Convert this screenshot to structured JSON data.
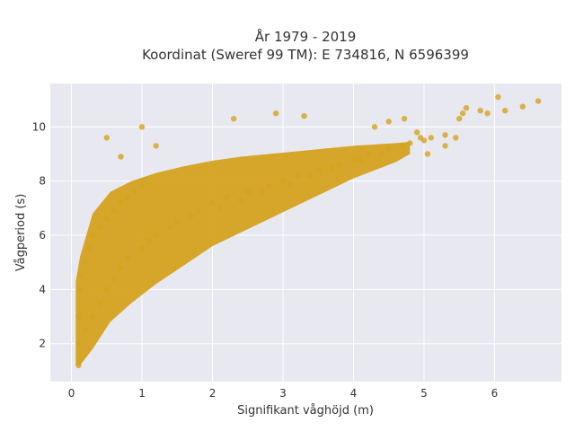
{
  "chart_data": {
    "type": "scatter",
    "title_line1": "År 1979 - 2019",
    "title_line2": "Koordinat (Sweref 99 TM): E 734816, N 6596399",
    "xlabel": "Signifikant våghöjd (m)",
    "ylabel": "Vågperiod (s)",
    "xlim": [
      -0.3,
      6.95
    ],
    "ylim": [
      0.6,
      11.6
    ],
    "xticks": [
      0,
      1,
      2,
      3,
      4,
      5,
      6
    ],
    "yticks": [
      2,
      4,
      6,
      8,
      10
    ],
    "xtick_labels": [
      "0",
      "1",
      "2",
      "3",
      "4",
      "5",
      "6"
    ],
    "ytick_labels": [
      "2",
      "4",
      "6",
      "8",
      "10"
    ],
    "grid": true,
    "legend": "none",
    "colors": {
      "marker": "#d4a21e",
      "plot_bg": "#e8e8f0",
      "grid": "#ffffff",
      "paper_bg": "#ffffff"
    },
    "series": [
      {
        "points_note_free": true,
        "x": [
          0.1,
          0.1,
          0.1,
          0.12,
          0.15,
          0.2,
          0.25,
          0.3,
          0.4,
          0.5,
          0.6,
          0.7,
          0.8,
          0.9,
          1.0,
          0.3,
          0.5,
          0.7,
          1.0,
          1.2,
          1.5,
          1.8,
          2.0,
          2.2,
          2.5,
          2.8,
          3.0,
          3.2,
          3.5,
          3.8,
          4.0,
          4.2,
          4.5,
          4.8,
          5.0,
          0.2,
          0.4,
          0.6,
          0.8,
          1.1,
          1.4,
          1.7,
          2.1,
          2.4,
          2.7,
          3.1,
          3.4,
          3.7,
          4.1,
          4.4,
          4.7,
          5.1,
          5.3,
          5.5,
          5.6,
          5.8,
          5.9,
          6.05,
          6.15,
          6.4,
          6.62,
          5.55,
          5.45,
          5.3,
          5.05,
          4.95,
          4.72,
          4.5,
          4.3,
          1.0,
          1.2,
          0.5,
          0.7,
          2.9,
          3.3,
          2.3,
          4.9
        ],
        "y": [
          1.2,
          2.0,
          3.0,
          4.0,
          4.5,
          5.0,
          5.5,
          6.0,
          6.3,
          6.6,
          6.9,
          7.2,
          7.4,
          7.6,
          7.8,
          3.0,
          4.0,
          4.8,
          5.5,
          6.0,
          6.5,
          6.9,
          7.2,
          7.4,
          7.6,
          7.8,
          8.0,
          8.2,
          8.4,
          8.6,
          8.8,
          9.0,
          9.2,
          9.4,
          9.5,
          2.5,
          3.5,
          4.4,
          5.2,
          5.8,
          6.3,
          6.7,
          7.0,
          7.3,
          7.6,
          7.9,
          8.2,
          8.5,
          8.8,
          9.0,
          9.3,
          9.6,
          9.7,
          10.3,
          10.7,
          10.6,
          10.5,
          11.1,
          10.6,
          10.75,
          10.95,
          10.5,
          9.6,
          9.3,
          9.0,
          9.6,
          10.3,
          10.2,
          10.0,
          10.0,
          9.3,
          9.6,
          8.9,
          10.5,
          10.4,
          10.3,
          9.8
        ]
      }
    ]
  }
}
